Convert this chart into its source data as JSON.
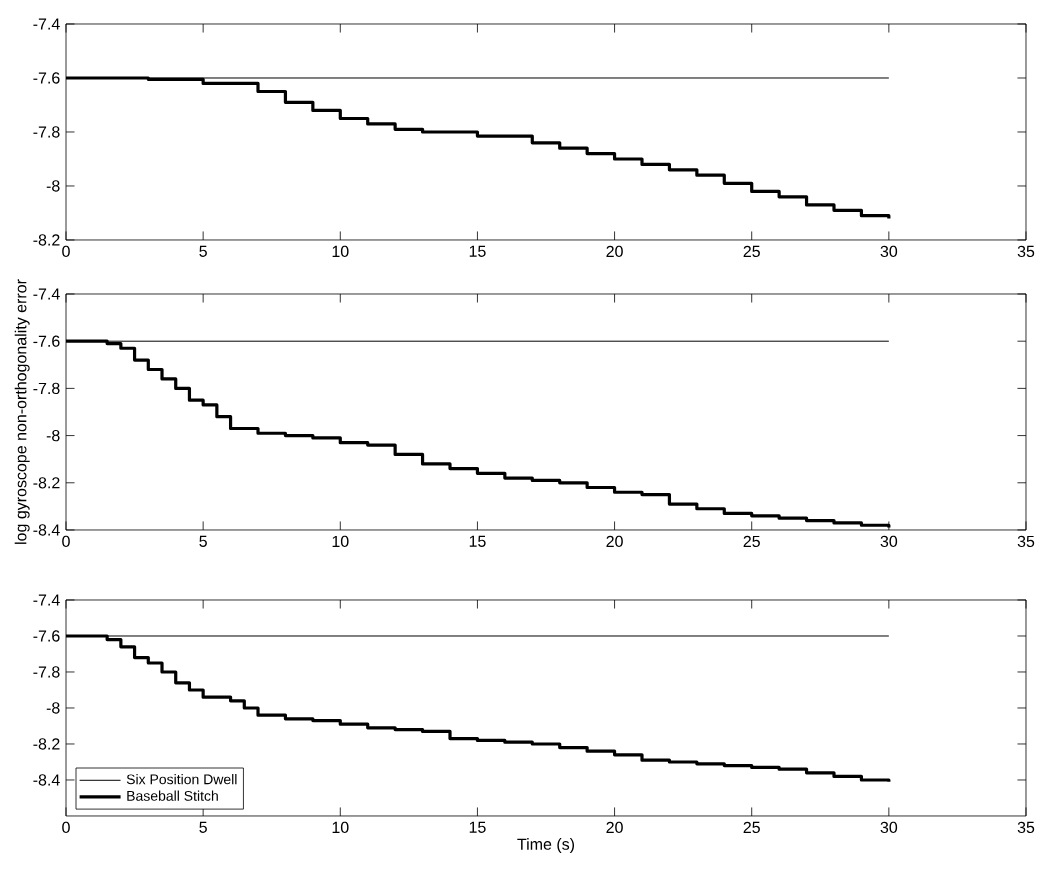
{
  "chart_data": [
    {
      "type": "step",
      "xlim": [
        0,
        35
      ],
      "ylim": [
        -8.2,
        -7.4
      ],
      "xticks": [
        0,
        5,
        10,
        15,
        20,
        25,
        30,
        35
      ],
      "yticks": [
        -8.2,
        -8,
        -7.8,
        -7.6,
        -7.4
      ],
      "series": [
        {
          "type": "line",
          "color": "#000000",
          "x": [
            0,
            30
          ],
          "values": [
            -7.6,
            -7.6
          ]
        },
        {
          "color": "#000000",
          "x": [
            0,
            3,
            5,
            7,
            8,
            9,
            10,
            11,
            12,
            13,
            15,
            17,
            18,
            19,
            20,
            21,
            22,
            23,
            24,
            25,
            26,
            27,
            28,
            29,
            30
          ],
          "values": [
            -7.6,
            -7.605,
            -7.62,
            -7.65,
            -7.69,
            -7.72,
            -7.75,
            -7.77,
            -7.79,
            -7.8,
            -7.815,
            -7.84,
            -7.86,
            -7.88,
            -7.9,
            -7.92,
            -7.94,
            -7.96,
            -7.99,
            -8.02,
            -8.04,
            -8.07,
            -8.09,
            -8.11,
            -8.12
          ]
        }
      ]
    },
    {
      "type": "step",
      "ylabel": "log gyroscope non-orthogonality error",
      "xlim": [
        0,
        35
      ],
      "ylim": [
        -8.4,
        -7.4
      ],
      "xticks": [
        0,
        5,
        10,
        15,
        20,
        25,
        30,
        35
      ],
      "yticks": [
        -8.4,
        -8.2,
        -8,
        -7.8,
        -7.6,
        -7.4
      ],
      "series": [
        {
          "type": "line",
          "color": "#000000",
          "x": [
            0,
            30
          ],
          "values": [
            -7.6,
            -7.6
          ]
        },
        {
          "color": "#000000",
          "x": [
            0,
            1,
            1.5,
            2,
            2.5,
            3,
            3.5,
            4,
            4.5,
            5,
            5.5,
            6,
            7,
            8,
            9,
            10,
            11,
            12,
            13,
            14,
            15,
            16,
            17,
            18,
            19,
            20,
            21,
            22,
            23,
            24,
            25,
            26,
            27,
            28,
            29,
            30
          ],
          "values": [
            -7.6,
            -7.6,
            -7.61,
            -7.63,
            -7.68,
            -7.72,
            -7.76,
            -7.8,
            -7.85,
            -7.87,
            -7.92,
            -7.97,
            -7.99,
            -8.0,
            -8.01,
            -8.03,
            -8.04,
            -8.08,
            -8.12,
            -8.14,
            -8.16,
            -8.18,
            -8.19,
            -8.2,
            -8.22,
            -8.24,
            -8.25,
            -8.29,
            -8.31,
            -8.33,
            -8.34,
            -8.35,
            -8.36,
            -8.37,
            -8.38,
            -8.39
          ]
        }
      ]
    },
    {
      "type": "step",
      "xlabel": "Time (s)",
      "xlim": [
        0,
        35
      ],
      "ylim": [
        -8.6,
        -7.4
      ],
      "xticks": [
        0,
        5,
        10,
        15,
        20,
        25,
        30,
        35
      ],
      "yticks": [
        -8.4,
        -8.2,
        -8,
        -7.8,
        -7.6,
        -7.4
      ],
      "legend": "bottom left",
      "series": [
        {
          "type": "line",
          "name": "Six Position Dwell",
          "color": "#000000",
          "x": [
            0,
            30
          ],
          "values": [
            -7.6,
            -7.6
          ]
        },
        {
          "name": "Baseball Stitch",
          "color": "#000000",
          "x": [
            0,
            1,
            1.5,
            2,
            2.5,
            3,
            3.5,
            4,
            4.5,
            5,
            6,
            6.5,
            7,
            8,
            9,
            10,
            11,
            12,
            13,
            14,
            15,
            16,
            17,
            18,
            19,
            20,
            21,
            22,
            23,
            24,
            25,
            26,
            27,
            28,
            29,
            30
          ],
          "values": [
            -7.6,
            -7.6,
            -7.62,
            -7.66,
            -7.72,
            -7.75,
            -7.8,
            -7.86,
            -7.9,
            -7.94,
            -7.96,
            -8.0,
            -8.04,
            -8.06,
            -8.07,
            -8.09,
            -8.11,
            -8.12,
            -8.13,
            -8.17,
            -8.18,
            -8.19,
            -8.2,
            -8.22,
            -8.24,
            -8.26,
            -8.29,
            -8.3,
            -8.31,
            -8.32,
            -8.33,
            -8.34,
            -8.36,
            -8.38,
            -8.4,
            -8.41
          ]
        }
      ]
    }
  ]
}
